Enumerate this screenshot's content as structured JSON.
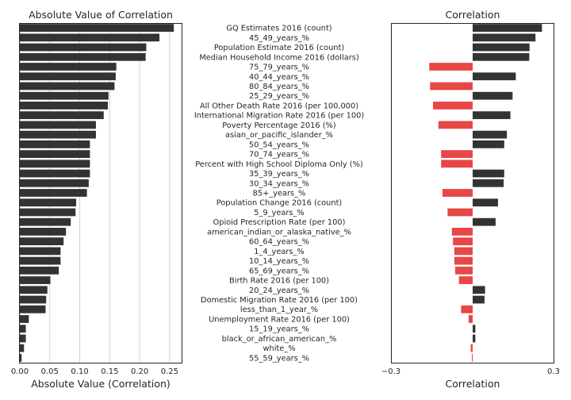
{
  "colors": {
    "positive": "#333333",
    "negative": "#e84747",
    "grid": "#d0d0d0",
    "axis": "#262626"
  },
  "chart_data": [
    {
      "type": "bar",
      "orientation": "horizontal",
      "title": "Absolute Value of Correlation",
      "xlabel": "Absolute Value (Correlation)",
      "ylabel": "",
      "xlim": [
        0,
        0.27
      ],
      "xticks": [
        "0.00",
        "0.05",
        "0.10",
        "0.15",
        "0.20",
        "0.25"
      ],
      "grid": true,
      "categories": [
        "GQ Estimates 2016 (count)",
        "45_49_years_%",
        "Population Estimate 2016 (count)",
        "Median Household Income 2016 (dollars)",
        "75_79_years_%",
        "40_44_years_%",
        "80_84_years_%",
        "25_29_years_%",
        "All Other Death Rate 2016 (per 100,000)",
        "International Migration Rate 2016 (per 100)",
        "Poverty Percentage 2016 (%)",
        "asian_or_pacific_islander_%",
        "50_54_years_%",
        "70_74_years_%",
        "Percent with High School Diploma Only (%)",
        "35_39_years_%",
        "30_34_years_%",
        "85+_years_%",
        "Population Change 2016 (count)",
        "5_9_years_%",
        "Opioid Prescription Rate (per 100)",
        "american_indian_or_alaska_native_%",
        "60_64_years_%",
        "1_4_years_%",
        "10_14_years_%",
        "65_69_years_%",
        "Birth Rate 2016 (per 100)",
        "20_24_years_%",
        "Domestic Migration Rate 2016 (per 100)",
        "less_than_1_year_%",
        "Unemployment Rate 2016 (per 100)",
        "15_19_years_%",
        "black_or_african_american_%",
        "white_%",
        "55_59_years_%"
      ],
      "values": [
        0.257,
        0.233,
        0.211,
        0.21,
        0.161,
        0.16,
        0.158,
        0.148,
        0.147,
        0.14,
        0.127,
        0.127,
        0.117,
        0.117,
        0.117,
        0.117,
        0.115,
        0.112,
        0.094,
        0.093,
        0.085,
        0.077,
        0.073,
        0.068,
        0.068,
        0.065,
        0.051,
        0.046,
        0.044,
        0.043,
        0.015,
        0.01,
        0.01,
        0.007,
        0.003
      ]
    },
    {
      "type": "bar",
      "orientation": "horizontal",
      "title": "Correlation",
      "xlabel": "Correlation",
      "ylabel": "",
      "xlim": [
        -0.3,
        0.3
      ],
      "xticks": [
        "−0.3",
        "0.3"
      ],
      "grid": false,
      "values": [
        0.257,
        0.233,
        0.211,
        0.21,
        -0.161,
        0.16,
        -0.158,
        0.148,
        -0.147,
        0.14,
        -0.127,
        0.127,
        0.117,
        -0.117,
        -0.117,
        0.117,
        0.115,
        -0.112,
        0.094,
        -0.093,
        0.085,
        -0.077,
        -0.073,
        -0.068,
        -0.068,
        -0.065,
        -0.051,
        0.046,
        0.044,
        -0.043,
        -0.015,
        0.01,
        0.01,
        -0.007,
        -0.003
      ]
    }
  ]
}
